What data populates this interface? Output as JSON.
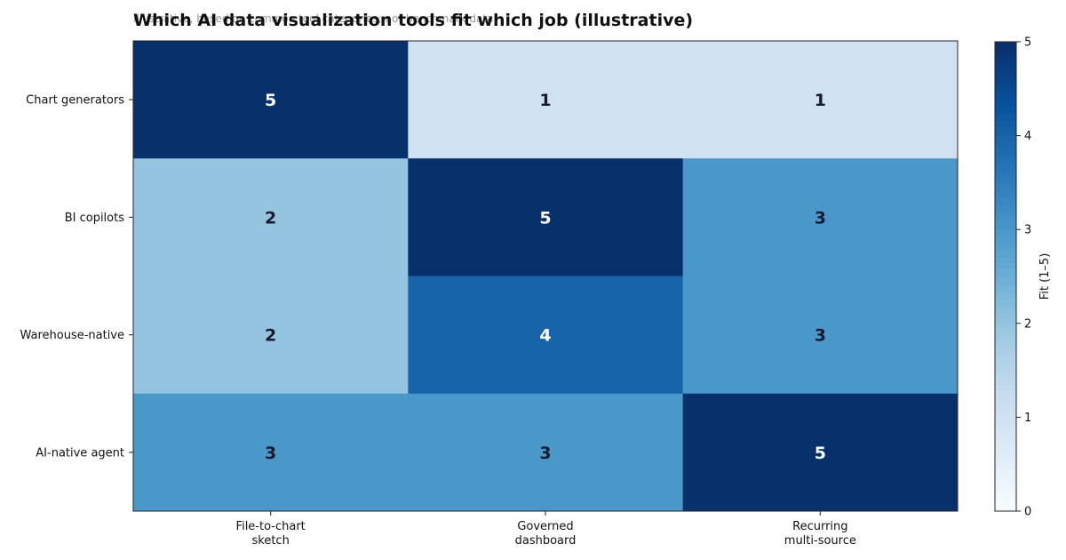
{
  "chart_data": {
    "type": "heatmap",
    "title": "Which AI data visualization tools fit which job (illustrative)",
    "subtitle": "Illustrative, based on common tool categories; not benchmark data",
    "rows": [
      "Chart generators",
      "BI copilots",
      "Warehouse-native",
      "AI-native agent"
    ],
    "columns": [
      [
        "File-to-chart",
        "sketch"
      ],
      [
        "Governed",
        "dashboard"
      ],
      [
        "Recurring",
        "multi-source"
      ]
    ],
    "values": [
      [
        5,
        1,
        1
      ],
      [
        2,
        5,
        3
      ],
      [
        2,
        4,
        3
      ],
      [
        3,
        3,
        5
      ]
    ],
    "colorbar": {
      "label": "Fit (1–5)",
      "min": 0,
      "max": 5,
      "ticks": [
        0,
        1,
        2,
        3,
        4,
        5
      ],
      "colormap": "Blues"
    }
  }
}
